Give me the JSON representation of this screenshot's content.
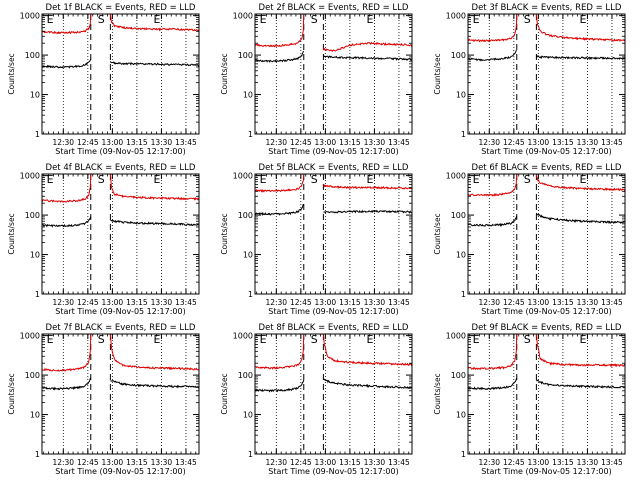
{
  "figure": {
    "xlabel": "Start Time (09-Nov-05 12:17:00)",
    "ylabel": "Counts/sec",
    "x_ticks": [
      "12:30",
      "12:45",
      "13:00",
      "13:15",
      "13:30",
      "13:45"
    ],
    "y_ticks": [
      "1",
      "10",
      "100",
      "1000"
    ],
    "markers": [
      {
        "label": "E",
        "x": 12.35
      },
      {
        "label": "S",
        "x": 12.872
      },
      {
        "label": "E",
        "x": 13.44
      }
    ],
    "colors": {
      "events": "#000000",
      "lld": "#e00000",
      "axes": "#000000",
      "background": "#ffffff"
    }
  },
  "chart_data": [
    {
      "type": "line",
      "title": "Det 1f BLACK = Events, RED = LLD",
      "x_unit": "hours (12:17 = 12.283)",
      "xlim": [
        12.283,
        13.883
      ],
      "ylim": [
        1,
        1100
      ],
      "y_scale": "log",
      "dashed_x": [
        12.78,
        12.98
      ],
      "dotted_x": [
        12.5,
        12.75,
        13.0,
        13.25,
        13.5,
        13.75
      ],
      "series": [
        {
          "name": "RED = LLD",
          "x": [
            12.283,
            12.35,
            12.45,
            12.55,
            12.65,
            12.72,
            12.76,
            12.775,
            12.78
          ],
          "y": [
            390,
            380,
            370,
            370,
            380,
            400,
            480,
            600,
            1100
          ]
        },
        {
          "name": "RED = LLD",
          "x": [
            12.98,
            12.99,
            13.02,
            13.1,
            13.25,
            13.45,
            13.6,
            13.75,
            13.883
          ],
          "y": [
            1100,
            700,
            560,
            500,
            470,
            450,
            460,
            440,
            420
          ]
        },
        {
          "name": "BLACK = Events",
          "x": [
            12.283,
            12.35,
            12.45,
            12.55,
            12.65,
            12.72,
            12.76,
            12.78
          ],
          "y": [
            52,
            51,
            50,
            50,
            52,
            56,
            66,
            80
          ]
        },
        {
          "name": "BLACK = Events",
          "x": [
            12.98,
            13.02,
            13.1,
            13.25,
            13.45,
            13.6,
            13.75,
            13.883
          ],
          "y": [
            66,
            63,
            61,
            60,
            59,
            58,
            57,
            55
          ]
        }
      ]
    },
    {
      "type": "line",
      "title": "Det 2f BLACK = Events, RED = LLD",
      "x_unit": "hours (12:17 = 12.283)",
      "xlim": [
        12.283,
        13.883
      ],
      "ylim": [
        1,
        1100
      ],
      "y_scale": "log",
      "dashed_x": [
        12.78,
        12.98
      ],
      "dotted_x": [
        12.5,
        12.75,
        13.0,
        13.25,
        13.5,
        13.75
      ],
      "series": [
        {
          "name": "RED = LLD",
          "x": [
            12.283,
            12.35,
            12.45,
            12.55,
            12.65,
            12.72,
            12.76,
            12.775,
            12.78
          ],
          "y": [
            180,
            175,
            170,
            175,
            185,
            200,
            260,
            400,
            1100
          ]
        },
        {
          "name": "RED = LLD",
          "x": [
            12.98,
            12.99,
            13.02,
            13.1,
            13.25,
            13.45,
            13.6,
            13.75,
            13.883
          ],
          "y": [
            150,
            140,
            135,
            130,
            180,
            200,
            190,
            185,
            180
          ]
        },
        {
          "name": "BLACK = Events",
          "x": [
            12.283,
            12.35,
            12.45,
            12.55,
            12.65,
            12.72,
            12.76,
            12.78
          ],
          "y": [
            75,
            72,
            70,
            72,
            75,
            82,
            100,
            125
          ]
        },
        {
          "name": "BLACK = Events",
          "x": [
            12.98,
            13.02,
            13.1,
            13.25,
            13.45,
            13.6,
            13.75,
            13.883
          ],
          "y": [
            92,
            90,
            88,
            86,
            84,
            82,
            80,
            78
          ]
        }
      ]
    },
    {
      "type": "line",
      "title": "Det 3f BLACK = Events, RED = LLD",
      "x_unit": "hours (12:17 = 12.283)",
      "xlim": [
        12.283,
        13.883
      ],
      "ylim": [
        1,
        1100
      ],
      "y_scale": "log",
      "dashed_x": [
        12.78,
        12.98
      ],
      "dotted_x": [
        12.5,
        12.75,
        13.0,
        13.25,
        13.5,
        13.75
      ],
      "series": [
        {
          "name": "RED = LLD",
          "x": [
            12.283,
            12.35,
            12.45,
            12.55,
            12.65,
            12.72,
            12.76,
            12.775,
            12.78
          ],
          "y": [
            240,
            235,
            230,
            235,
            245,
            260,
            330,
            500,
            1100
          ]
        },
        {
          "name": "RED = LLD",
          "x": [
            12.98,
            12.99,
            13.02,
            13.1,
            13.25,
            13.45,
            13.6,
            13.75,
            13.883
          ],
          "y": [
            1100,
            600,
            400,
            320,
            280,
            260,
            250,
            240,
            235
          ]
        },
        {
          "name": "BLACK = Events",
          "x": [
            12.283,
            12.35,
            12.45,
            12.55,
            12.65,
            12.72,
            12.76,
            12.78
          ],
          "y": [
            80,
            78,
            76,
            78,
            82,
            90,
            110,
            130
          ]
        },
        {
          "name": "BLACK = Events",
          "x": [
            12.98,
            13.02,
            13.1,
            13.25,
            13.45,
            13.6,
            13.75,
            13.883
          ],
          "y": [
            95,
            90,
            88,
            86,
            85,
            84,
            83,
            82
          ]
        }
      ]
    },
    {
      "type": "line",
      "title": "Det 4f BLACK = Events, RED = LLD",
      "x_unit": "hours (12:17 = 12.283)",
      "xlim": [
        12.283,
        13.883
      ],
      "ylim": [
        1,
        1100
      ],
      "y_scale": "log",
      "dashed_x": [
        12.78,
        12.98
      ],
      "dotted_x": [
        12.5,
        12.75,
        13.0,
        13.25,
        13.5,
        13.75
      ],
      "series": [
        {
          "name": "RED = LLD",
          "x": [
            12.283,
            12.35,
            12.45,
            12.55,
            12.65,
            12.72,
            12.76,
            12.775,
            12.78
          ],
          "y": [
            240,
            230,
            225,
            225,
            235,
            250,
            320,
            500,
            1100
          ]
        },
        {
          "name": "RED = LLD",
          "x": [
            12.98,
            12.99,
            13.02,
            13.1,
            13.25,
            13.45,
            13.6,
            13.75,
            13.883
          ],
          "y": [
            1100,
            500,
            340,
            300,
            280,
            270,
            265,
            260,
            255
          ]
        },
        {
          "name": "BLACK = Events",
          "x": [
            12.283,
            12.35,
            12.45,
            12.55,
            12.65,
            12.72,
            12.76,
            12.78
          ],
          "y": [
            55,
            54,
            53,
            54,
            56,
            60,
            72,
            90
          ]
        },
        {
          "name": "BLACK = Events",
          "x": [
            12.98,
            13.02,
            13.1,
            13.25,
            13.45,
            13.6,
            13.75,
            13.883
          ],
          "y": [
            75,
            70,
            66,
            63,
            61,
            60,
            58,
            56
          ]
        }
      ]
    },
    {
      "type": "line",
      "title": "Det 5f BLACK = Events, RED = LLD",
      "x_unit": "hours (12:17 = 12.283)",
      "xlim": [
        12.283,
        13.883
      ],
      "ylim": [
        1,
        1100
      ],
      "y_scale": "log",
      "dashed_x": [
        12.78,
        12.98
      ],
      "dotted_x": [
        12.5,
        12.75,
        13.0,
        13.25,
        13.5,
        13.75
      ],
      "series": [
        {
          "name": "RED = LLD",
          "x": [
            12.283,
            12.35,
            12.45,
            12.55,
            12.65,
            12.72,
            12.76,
            12.775,
            12.78
          ],
          "y": [
            420,
            415,
            410,
            415,
            430,
            460,
            560,
            750,
            1100
          ]
        },
        {
          "name": "RED = LLD",
          "x": [
            12.98,
            12.99,
            13.02,
            13.1,
            13.25,
            13.45,
            13.6,
            13.75,
            13.883
          ],
          "y": [
            600,
            560,
            540,
            520,
            500,
            500,
            495,
            480,
            470
          ]
        },
        {
          "name": "BLACK = Events",
          "x": [
            12.283,
            12.35,
            12.45,
            12.55,
            12.65,
            12.72,
            12.76,
            12.78
          ],
          "y": [
            110,
            108,
            106,
            108,
            112,
            122,
            150,
            190
          ]
        },
        {
          "name": "BLACK = Events",
          "x": [
            12.98,
            13.02,
            13.1,
            13.25,
            13.45,
            13.6,
            13.75,
            13.883
          ],
          "y": [
            115,
            118,
            120,
            122,
            125,
            124,
            122,
            120
          ]
        }
      ]
    },
    {
      "type": "line",
      "title": "Det 6f BLACK = Events, RED = LLD",
      "x_unit": "hours (12:17 = 12.283)",
      "xlim": [
        12.283,
        13.883
      ],
      "ylim": [
        1,
        1100
      ],
      "y_scale": "log",
      "dashed_x": [
        12.78,
        12.98
      ],
      "dotted_x": [
        12.5,
        12.75,
        13.0,
        13.25,
        13.5,
        13.75
      ],
      "series": [
        {
          "name": "RED = LLD",
          "x": [
            12.283,
            12.35,
            12.45,
            12.55,
            12.65,
            12.72,
            12.76,
            12.775,
            12.78
          ],
          "y": [
            330,
            325,
            320,
            325,
            340,
            370,
            460,
            650,
            1100
          ]
        },
        {
          "name": "RED = LLD",
          "x": [
            12.98,
            12.99,
            13.02,
            13.1,
            13.25,
            13.45,
            13.6,
            13.75,
            13.883
          ],
          "y": [
            1100,
            800,
            650,
            560,
            500,
            470,
            460,
            450,
            440
          ]
        },
        {
          "name": "BLACK = Events",
          "x": [
            12.283,
            12.35,
            12.45,
            12.55,
            12.65,
            12.72,
            12.76,
            12.78
          ],
          "y": [
            57,
            56,
            55,
            56,
            58,
            62,
            75,
            95
          ]
        },
        {
          "name": "BLACK = Events",
          "x": [
            12.98,
            13.02,
            13.1,
            13.25,
            13.45,
            13.6,
            13.75,
            13.883
          ],
          "y": [
            110,
            95,
            82,
            75,
            70,
            68,
            66,
            65
          ]
        }
      ]
    },
    {
      "type": "line",
      "title": "Det 7f BLACK = Events, RED = LLD",
      "x_unit": "hours (12:17 = 12.283)",
      "xlim": [
        12.283,
        13.883
      ],
      "ylim": [
        1,
        1100
      ],
      "y_scale": "log",
      "dashed_x": [
        12.78,
        12.98
      ],
      "dotted_x": [
        12.5,
        12.75,
        13.0,
        13.25,
        13.5,
        13.75
      ],
      "series": [
        {
          "name": "RED = LLD",
          "x": [
            12.283,
            12.35,
            12.45,
            12.55,
            12.65,
            12.72,
            12.76,
            12.775,
            12.78
          ],
          "y": [
            140,
            135,
            130,
            135,
            145,
            160,
            220,
            400,
            1100
          ]
        },
        {
          "name": "RED = LLD",
          "x": [
            12.98,
            12.99,
            13.02,
            13.1,
            13.25,
            13.45,
            13.6,
            13.75,
            13.883
          ],
          "y": [
            1100,
            500,
            250,
            180,
            160,
            150,
            150,
            145,
            140
          ]
        },
        {
          "name": "BLACK = Events",
          "x": [
            12.283,
            12.35,
            12.45,
            12.55,
            12.65,
            12.72,
            12.76,
            12.78
          ],
          "y": [
            47,
            46,
            45,
            46,
            48,
            52,
            65,
            85
          ]
        },
        {
          "name": "BLACK = Events",
          "x": [
            12.98,
            13.02,
            13.1,
            13.25,
            13.45,
            13.6,
            13.75,
            13.883
          ],
          "y": [
            75,
            68,
            60,
            55,
            53,
            52,
            51,
            50
          ]
        }
      ]
    },
    {
      "type": "line",
      "title": "Det 8f BLACK = Events, RED = LLD",
      "x_unit": "hours (12:17 = 12.283)",
      "xlim": [
        12.283,
        13.883
      ],
      "ylim": [
        1,
        1100
      ],
      "y_scale": "log",
      "dashed_x": [
        12.78,
        12.98
      ],
      "dotted_x": [
        12.5,
        12.75,
        13.0,
        13.25,
        13.5,
        13.75
      ],
      "series": [
        {
          "name": "RED = LLD",
          "x": [
            12.283,
            12.35,
            12.45,
            12.55,
            12.65,
            12.72,
            12.76,
            12.775,
            12.78
          ],
          "y": [
            160,
            155,
            150,
            155,
            165,
            180,
            240,
            420,
            1100
          ]
        },
        {
          "name": "RED = LLD",
          "x": [
            12.98,
            12.99,
            13.02,
            13.1,
            13.25,
            13.45,
            13.6,
            13.75,
            13.883
          ],
          "y": [
            1100,
            600,
            300,
            230,
            210,
            200,
            195,
            190,
            185
          ]
        },
        {
          "name": "BLACK = Events",
          "x": [
            12.283,
            12.35,
            12.45,
            12.55,
            12.65,
            12.72,
            12.76,
            12.78
          ],
          "y": [
            42,
            41,
            40,
            41,
            43,
            47,
            58,
            75
          ]
        },
        {
          "name": "BLACK = Events",
          "x": [
            12.98,
            13.02,
            13.1,
            13.25,
            13.45,
            13.6,
            13.75,
            13.883
          ],
          "y": [
            80,
            70,
            62,
            56,
            53,
            51,
            50,
            48
          ]
        }
      ]
    },
    {
      "type": "line",
      "title": "Det 9f BLACK = Events, RED = LLD",
      "x_unit": "hours (12:17 = 12.283)",
      "xlim": [
        12.283,
        13.883
      ],
      "ylim": [
        1,
        1100
      ],
      "y_scale": "log",
      "dashed_x": [
        12.78,
        12.98
      ],
      "dotted_x": [
        12.5,
        12.75,
        13.0,
        13.25,
        13.5,
        13.75
      ],
      "series": [
        {
          "name": "RED = LLD",
          "x": [
            12.283,
            12.35,
            12.45,
            12.55,
            12.65,
            12.72,
            12.76,
            12.775,
            12.78
          ],
          "y": [
            150,
            148,
            145,
            148,
            155,
            170,
            230,
            400,
            1100
          ]
        },
        {
          "name": "RED = LLD",
          "x": [
            12.98,
            12.99,
            13.02,
            13.1,
            13.25,
            13.45,
            13.6,
            13.75,
            13.883
          ],
          "y": [
            1100,
            600,
            260,
            200,
            185,
            180,
            180,
            178,
            175
          ]
        },
        {
          "name": "BLACK = Events",
          "x": [
            12.283,
            12.35,
            12.45,
            12.55,
            12.65,
            12.72,
            12.76,
            12.78
          ],
          "y": [
            47,
            46,
            45,
            46,
            48,
            52,
            64,
            85
          ]
        },
        {
          "name": "BLACK = Events",
          "x": [
            12.98,
            13.02,
            13.1,
            13.25,
            13.45,
            13.6,
            13.75,
            13.883
          ],
          "y": [
            75,
            66,
            58,
            54,
            52,
            51,
            50,
            49
          ]
        }
      ]
    }
  ]
}
